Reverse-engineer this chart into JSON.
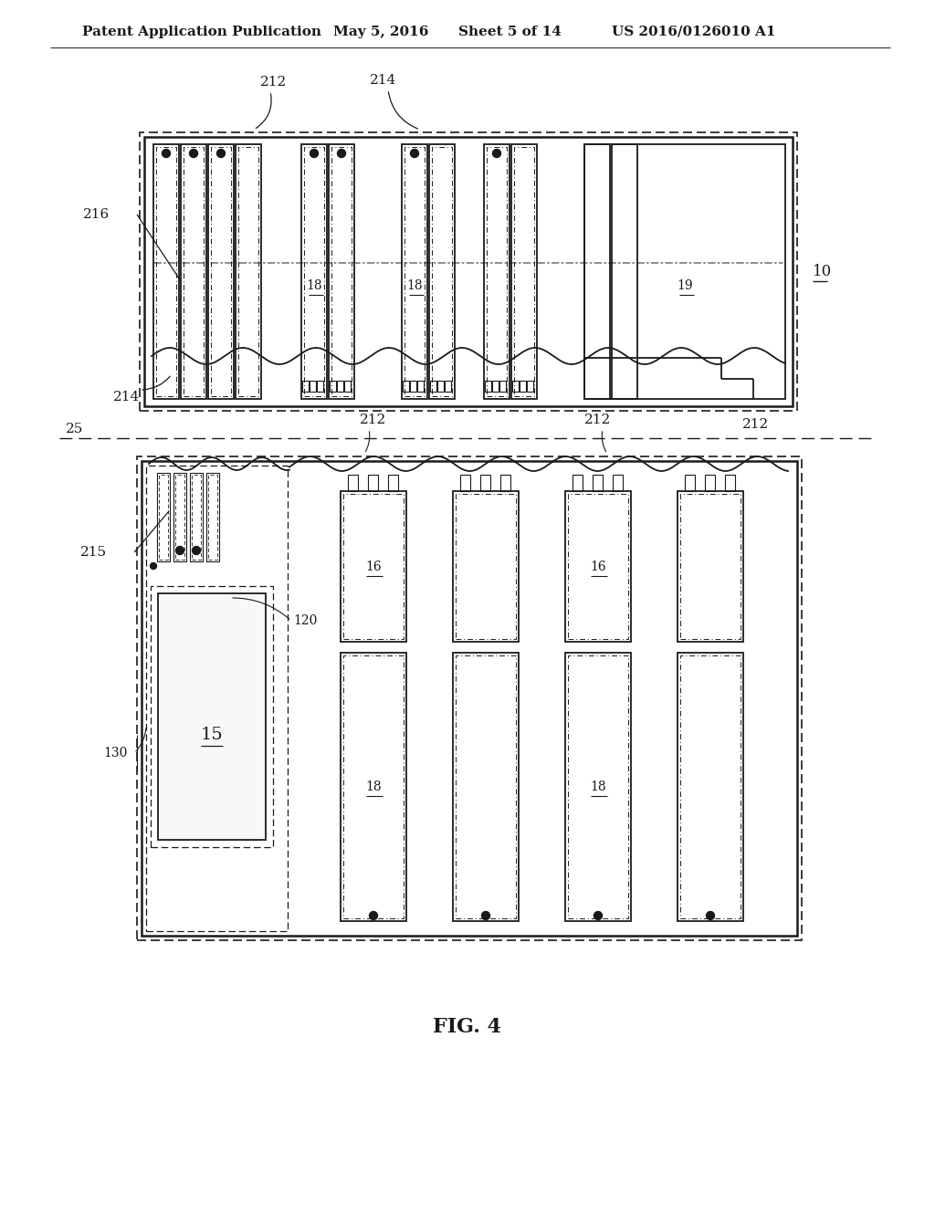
{
  "bg_color": "#ffffff",
  "lc": "#1a1a1a",
  "header_text": "Patent Application Publication",
  "header_date": "May 5, 2016",
  "header_sheet": "Sheet 5 of 14",
  "header_patent": "US 2016/0126010 A1",
  "fig_label": "FIG. 4"
}
